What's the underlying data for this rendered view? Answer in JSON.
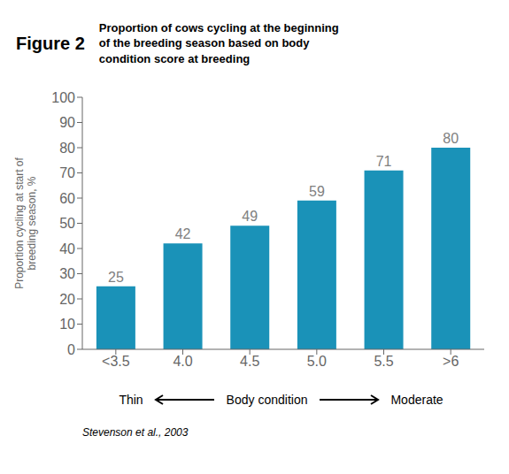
{
  "chart_data": {
    "type": "bar",
    "title": "Proportion of cows cycling at the beginning\nof the breeding season based on body\ncondition score at breeding",
    "categories": [
      "<3.5",
      "4.0",
      "4.5",
      "5.0",
      "5.5",
      ">6"
    ],
    "values": [
      25,
      42,
      49,
      59,
      71,
      80
    ],
    "color": "#1a92b8",
    "ylabel": "Proportion cycling at start of\nbreeding season, %",
    "ylim": [
      0,
      100
    ],
    "yticks": [
      0,
      10,
      20,
      30,
      40,
      50,
      60,
      70,
      80,
      90,
      100
    ],
    "grid": false,
    "data_labels": true,
    "annotations": [
      "Figure 2",
      "Thin",
      "Body condition",
      "Moderate",
      "Stevenson et al., 2003"
    ]
  }
}
